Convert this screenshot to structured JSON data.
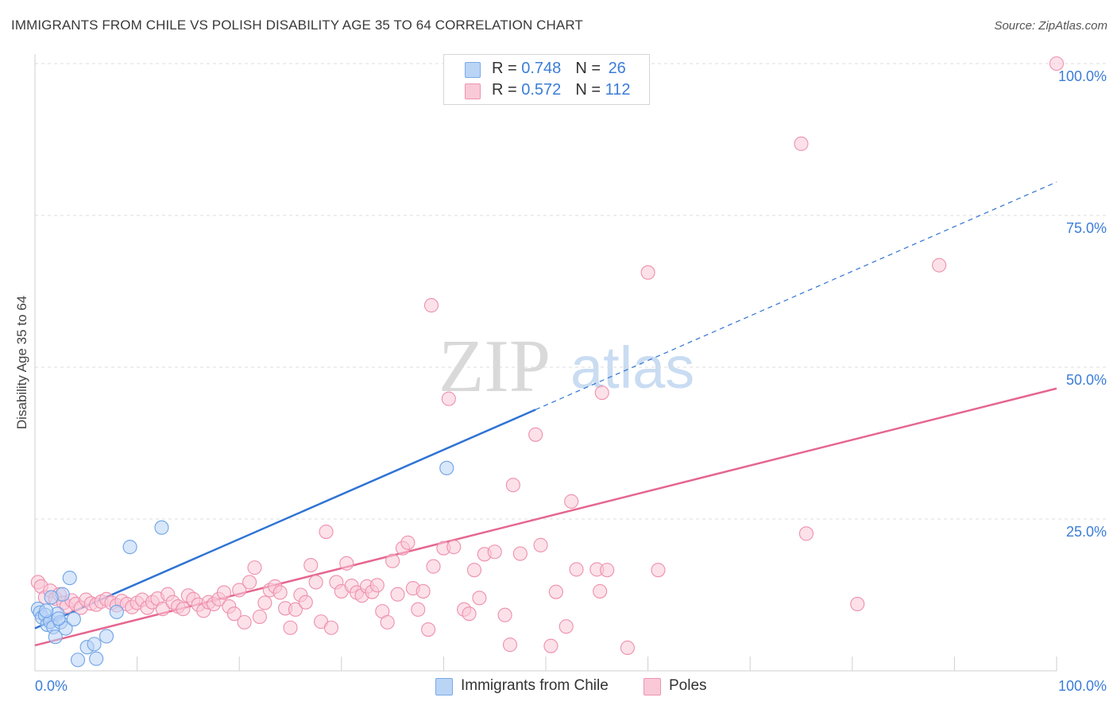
{
  "header": {
    "title": "IMMIGRANTS FROM CHILE VS POLISH DISABILITY AGE 35 TO 64 CORRELATION CHART",
    "source": "Source: ZipAtlas.com"
  },
  "watermark": {
    "part1": "ZIP",
    "part2": "atlas"
  },
  "stats": [
    {
      "swatch_color": "#b9d4f5",
      "swatch_border": "#7aaae6",
      "r_label": "R = ",
      "r_value": "0.748",
      "n_label": "N = ",
      "n_value": "26"
    },
    {
      "swatch_color": "#f9c9d7",
      "swatch_border": "#ee94b0",
      "r_label": "R = ",
      "r_value": "0.572",
      "n_label": "N = ",
      "n_value": "112"
    }
  ],
  "chart_data": {
    "type": "scatter",
    "title": "IMMIGRANTS FROM CHILE VS POLISH DISABILITY AGE 35 TO 64 CORRELATION CHART",
    "xlabel": "",
    "ylabel": "Disability Age 35 to 64",
    "xlim": [
      0,
      100
    ],
    "ylim": [
      0,
      100
    ],
    "x_tick_labels": [
      "0.0%",
      "100.0%"
    ],
    "y_ticks": [
      25,
      50,
      75,
      100
    ],
    "y_tick_labels": [
      "25.0%",
      "50.0%",
      "75.0%",
      "100.0%"
    ],
    "grid": "horizontal dashed",
    "legend_position": "bottom-center",
    "series": [
      {
        "name": "Immigrants from Chile",
        "color": "#6ea3e6",
        "fill": "#b9d4f5",
        "line_color": "#2f73d4",
        "r": 0.748,
        "n": 26,
        "trend": {
          "x0": 0,
          "y0": 7.0,
          "x1": 100,
          "y1": 80.5,
          "solid_until_x": 49
        },
        "points": [
          [
            0.3,
            10.2
          ],
          [
            0.5,
            9.6
          ],
          [
            0.7,
            8.8
          ],
          [
            1.0,
            9.2
          ],
          [
            1.2,
            7.6
          ],
          [
            1.5,
            8.1
          ],
          [
            1.8,
            7.2
          ],
          [
            2.0,
            5.6
          ],
          [
            2.2,
            9.4
          ],
          [
            2.5,
            8.0
          ],
          [
            2.7,
            12.6
          ],
          [
            3.0,
            7.0
          ],
          [
            3.4,
            15.3
          ],
          [
            3.8,
            8.5
          ],
          [
            4.2,
            1.8
          ],
          [
            5.1,
            3.9
          ],
          [
            5.8,
            4.4
          ],
          [
            6.0,
            2.0
          ],
          [
            7.0,
            5.7
          ],
          [
            8.0,
            9.7
          ],
          [
            9.3,
            20.4
          ],
          [
            12.4,
            23.6
          ],
          [
            1.6,
            12.1
          ],
          [
            2.3,
            8.6
          ],
          [
            1.1,
            9.9
          ],
          [
            40.3,
            33.4
          ]
        ]
      },
      {
        "name": "Poles",
        "color": "#ee8fae",
        "fill": "#f9c9d7",
        "line_color": "#e5668f",
        "r": 0.572,
        "n": 112,
        "trend": {
          "x0": 0,
          "y0": 4.2,
          "x1": 100,
          "y1": 46.5
        },
        "points": [
          [
            0.3,
            14.6
          ],
          [
            0.6,
            13.9
          ],
          [
            1.0,
            12.1
          ],
          [
            1.5,
            13.2
          ],
          [
            2.0,
            11.9
          ],
          [
            2.4,
            12.6
          ],
          [
            2.8,
            11.2
          ],
          [
            3.1,
            10.6
          ],
          [
            3.6,
            11.6
          ],
          [
            4.0,
            11.0
          ],
          [
            4.5,
            10.4
          ],
          [
            5.0,
            11.7
          ],
          [
            5.5,
            11.1
          ],
          [
            6.0,
            10.9
          ],
          [
            6.5,
            11.4
          ],
          [
            7.0,
            11.8
          ],
          [
            7.5,
            11.2
          ],
          [
            8.0,
            10.8
          ],
          [
            8.5,
            11.5
          ],
          [
            9.0,
            11.0
          ],
          [
            9.5,
            10.5
          ],
          [
            10.0,
            11.2
          ],
          [
            10.5,
            11.7
          ],
          [
            11.0,
            10.4
          ],
          [
            11.5,
            11.3
          ],
          [
            12.0,
            11.9
          ],
          [
            12.5,
            10.2
          ],
          [
            13.0,
            12.6
          ],
          [
            13.5,
            11.3
          ],
          [
            14.0,
            10.6
          ],
          [
            14.5,
            10.2
          ],
          [
            15.0,
            12.4
          ],
          [
            15.5,
            11.8
          ],
          [
            16.0,
            10.9
          ],
          [
            16.5,
            9.9
          ],
          [
            17.0,
            11.3
          ],
          [
            17.5,
            11.0
          ],
          [
            18.0,
            11.8
          ],
          [
            18.5,
            12.9
          ],
          [
            19.0,
            10.6
          ],
          [
            19.5,
            9.4
          ],
          [
            20.0,
            13.3
          ],
          [
            20.5,
            8.0
          ],
          [
            21.0,
            14.6
          ],
          [
            21.5,
            17.0
          ],
          [
            22.0,
            8.9
          ],
          [
            22.5,
            11.2
          ],
          [
            23.0,
            13.3
          ],
          [
            23.5,
            13.9
          ],
          [
            24.0,
            12.9
          ],
          [
            24.5,
            10.3
          ],
          [
            25.0,
            7.1
          ],
          [
            25.5,
            10.1
          ],
          [
            26.0,
            12.5
          ],
          [
            26.5,
            11.3
          ],
          [
            27.0,
            17.4
          ],
          [
            27.5,
            14.6
          ],
          [
            28.0,
            8.1
          ],
          [
            28.5,
            22.9
          ],
          [
            29.0,
            7.1
          ],
          [
            29.5,
            14.6
          ],
          [
            30.0,
            13.1
          ],
          [
            30.5,
            17.7
          ],
          [
            31.0,
            14.0
          ],
          [
            31.5,
            12.9
          ],
          [
            32.0,
            12.4
          ],
          [
            32.5,
            13.9
          ],
          [
            33.0,
            13.0
          ],
          [
            33.5,
            14.1
          ],
          [
            34.0,
            9.8
          ],
          [
            34.5,
            8.0
          ],
          [
            35.0,
            18.1
          ],
          [
            35.5,
            12.6
          ],
          [
            36.0,
            20.2
          ],
          [
            36.5,
            21.1
          ],
          [
            37.0,
            13.6
          ],
          [
            37.5,
            10.1
          ],
          [
            38.0,
            13.1
          ],
          [
            38.5,
            6.8
          ],
          [
            38.8,
            60.2
          ],
          [
            39.0,
            17.2
          ],
          [
            40.0,
            20.2
          ],
          [
            40.5,
            44.8
          ],
          [
            41.0,
            20.4
          ],
          [
            42.0,
            10.1
          ],
          [
            42.5,
            9.4
          ],
          [
            43.0,
            16.6
          ],
          [
            43.5,
            12.0
          ],
          [
            44.0,
            19.2
          ],
          [
            45.0,
            19.6
          ],
          [
            46.0,
            9.2
          ],
          [
            46.5,
            4.3
          ],
          [
            46.8,
            30.6
          ],
          [
            47.5,
            19.3
          ],
          [
            49.0,
            38.9
          ],
          [
            49.5,
            20.7
          ],
          [
            50.5,
            4.1
          ],
          [
            51.0,
            13.0
          ],
          [
            52.0,
            7.3
          ],
          [
            52.5,
            27.9
          ],
          [
            53.0,
            16.7
          ],
          [
            55.0,
            16.7
          ],
          [
            55.3,
            13.1
          ],
          [
            55.5,
            45.8
          ],
          [
            56.0,
            16.6
          ],
          [
            58.0,
            3.8
          ],
          [
            60.0,
            65.6
          ],
          [
            61.0,
            16.6
          ],
          [
            75.0,
            86.8
          ],
          [
            75.5,
            22.6
          ],
          [
            80.5,
            11.0
          ],
          [
            88.5,
            66.8
          ],
          [
            100.0,
            100.0
          ]
        ]
      }
    ]
  }
}
